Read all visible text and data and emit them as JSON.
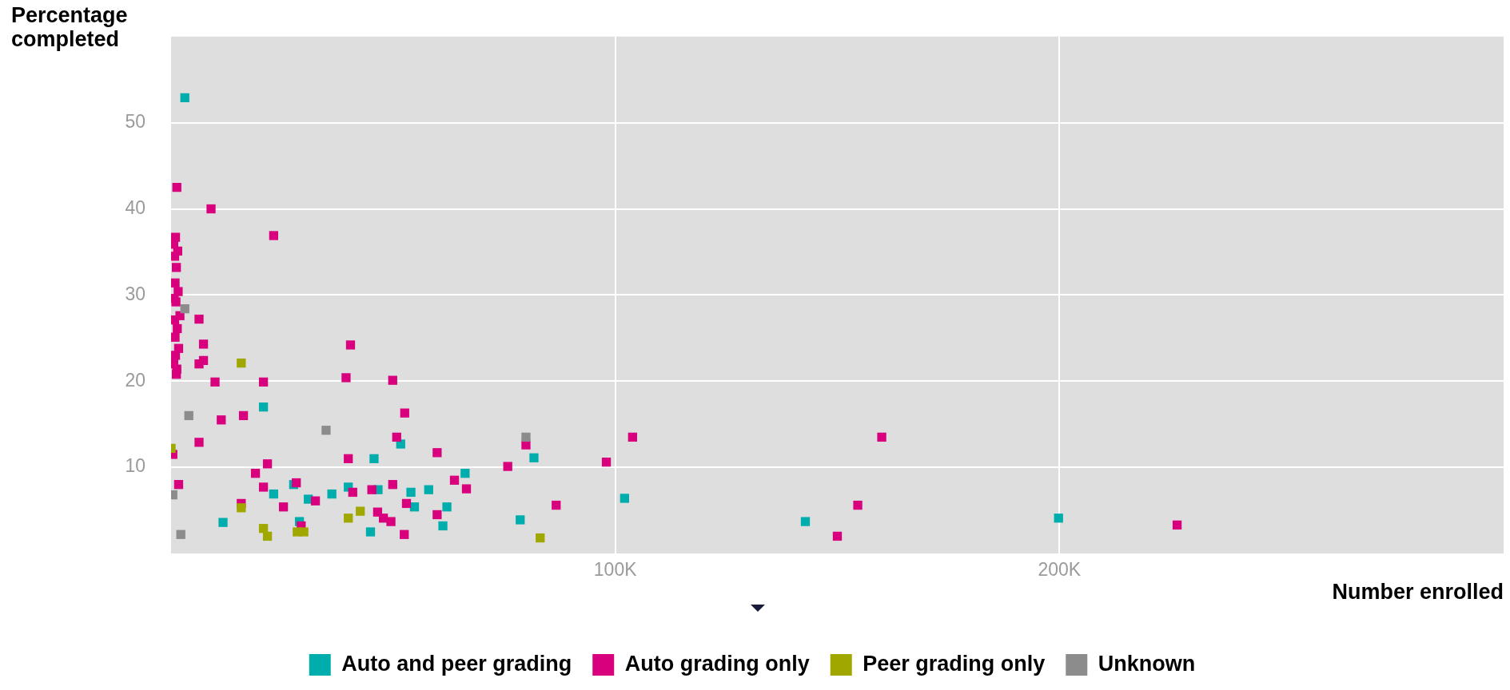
{
  "chart_data": {
    "type": "scatter",
    "xlabel": "Number enrolled",
    "ylabel": "Percentage completed",
    "xlim": [
      0,
      300000
    ],
    "ylim": [
      0,
      60
    ],
    "xticks": [
      {
        "value": 100000,
        "label": "100K"
      },
      {
        "value": 200000,
        "label": "200K"
      }
    ],
    "yticks": [
      10,
      20,
      30,
      40,
      50
    ],
    "grid": true,
    "legend": "bottom",
    "marker": "square",
    "series": [
      {
        "name": "Auto and peer grading",
        "color": "#00adad",
        "x": [
          3100,
          20800,
          45700,
          51700,
          66200,
          27600,
          23100,
          30900,
          36200,
          39900,
          46600,
          54000,
          58000,
          54800,
          62100,
          11700,
          28900,
          44900,
          61200,
          81700,
          102100,
          78600,
          142800,
          199800
        ],
        "values": [
          52.9,
          17.0,
          11.0,
          12.7,
          9.3,
          8.0,
          6.9,
          6.3,
          6.9,
          7.7,
          7.4,
          7.1,
          7.4,
          5.4,
          5.4,
          3.6,
          3.7,
          2.5,
          3.2,
          11.1,
          6.4,
          3.9,
          3.7,
          4.1
        ]
      },
      {
        "name": "Auto grading only",
        "color": "#d9007e",
        "x": [
          1300,
          9000,
          23100,
          1000,
          600,
          1500,
          800,
          1200,
          900,
          1600,
          700,
          1100,
          2000,
          800,
          1400,
          900,
          1700,
          1000,
          600,
          1300,
          1200,
          6300,
          7300,
          7300,
          6300,
          40400,
          9900,
          20800,
          39400,
          49900,
          52600,
          11300,
          16300,
          6300,
          50800,
          39900,
          59900,
          400,
          21700,
          19000,
          1700,
          20800,
          28200,
          32500,
          25300,
          15800,
          40900,
          45200,
          49900,
          63800,
          66500,
          53000,
          59900,
          46500,
          47800,
          49500,
          52500,
          29300,
          79900,
          75800,
          98000,
          103900,
          160000,
          86700,
          154600,
          150000,
          226500
        ],
        "values": [
          42.5,
          40.0,
          36.9,
          36.7,
          35.9,
          35.1,
          34.5,
          33.2,
          31.4,
          30.4,
          29.6,
          29.2,
          27.6,
          27.1,
          26.1,
          25.1,
          23.8,
          23.0,
          22.0,
          21.4,
          20.8,
          27.2,
          24.3,
          22.4,
          22.0,
          24.2,
          19.9,
          19.9,
          20.4,
          20.1,
          16.3,
          15.5,
          16.0,
          12.9,
          13.5,
          11.0,
          11.7,
          11.5,
          10.4,
          9.3,
          8.0,
          7.7,
          8.2,
          6.1,
          5.4,
          5.8,
          7.1,
          7.4,
          8.0,
          8.5,
          7.5,
          5.8,
          4.5,
          4.8,
          4.1,
          3.7,
          2.2,
          3.2,
          12.6,
          10.1,
          10.6,
          13.5,
          13.5,
          5.6,
          5.6,
          2.0,
          3.3
        ]
      },
      {
        "name": "Peer grading only",
        "color": "#a0a800",
        "x": [
          15800,
          0,
          15800,
          20800,
          21700,
          28400,
          29900,
          39900,
          42600,
          83100
        ],
        "values": [
          22.1,
          12.2,
          5.3,
          2.9,
          2.0,
          2.5,
          2.5,
          4.1,
          4.9,
          1.8
        ]
      },
      {
        "name": "Unknown",
        "color": "#8c8c8c",
        "x": [
          3100,
          4000,
          34900,
          400,
          2200,
          79900
        ],
        "values": [
          28.4,
          16.0,
          14.3,
          6.8,
          2.2,
          13.5
        ]
      }
    ]
  }
}
